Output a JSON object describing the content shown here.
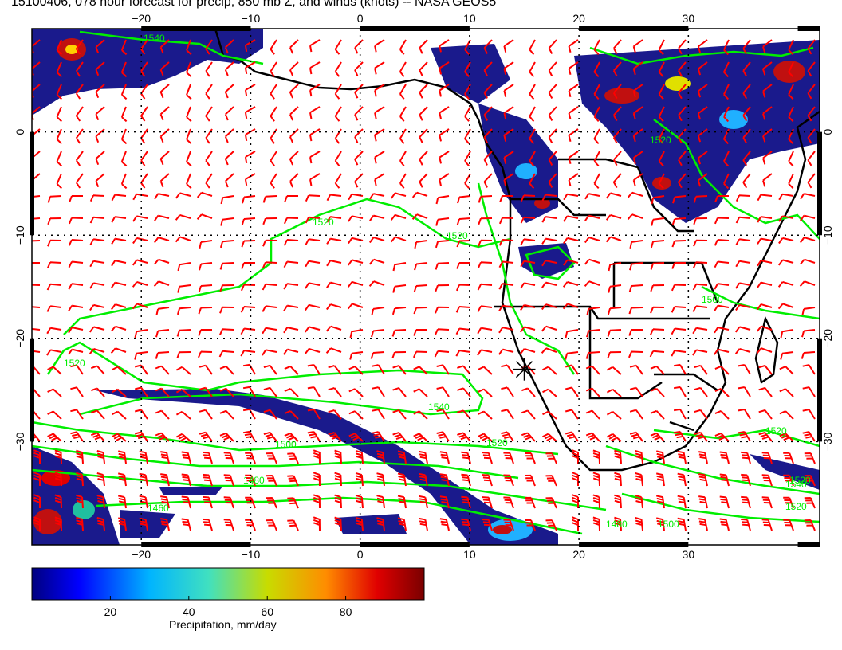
{
  "title": "15100406, 078 hour forecast for precip, 850 mb Z, and winds (knots) -- NASA GEOS5",
  "map": {
    "lon_min": -30,
    "lon_max": 42,
    "lat_min": -40,
    "lat_max": 10,
    "lon_ticks": [
      -20,
      -10,
      0,
      10,
      20,
      30
    ],
    "lat_ticks": [
      0,
      -10,
      -20,
      -30
    ],
    "grid": "dotted",
    "colors": {
      "precip_dark": "#1a1a8c",
      "precip_mid": "#2040c0",
      "wind_barb": "#ff0000",
      "contour": "#00ee00",
      "coastline": "#000000"
    }
  },
  "contours": {
    "variable": "850 mb geopotential height",
    "labels": [
      "1540",
      "1520",
      "1520",
      "1520",
      "1520",
      "1540",
      "1500",
      "1520",
      "1480",
      "1460",
      "1520",
      "1480",
      "1500",
      "1540",
      "1520",
      "1500",
      "1520"
    ]
  },
  "colorbar": {
    "caption": "Precipitation, mm/day",
    "ticks": [
      "20",
      "40",
      "60",
      "80"
    ],
    "tick_values": [
      20,
      40,
      60,
      80
    ],
    "min": 0,
    "max": 100
  },
  "marker": {
    "icon": "asterisk-marker-icon",
    "lon": 15,
    "lat": -23
  }
}
